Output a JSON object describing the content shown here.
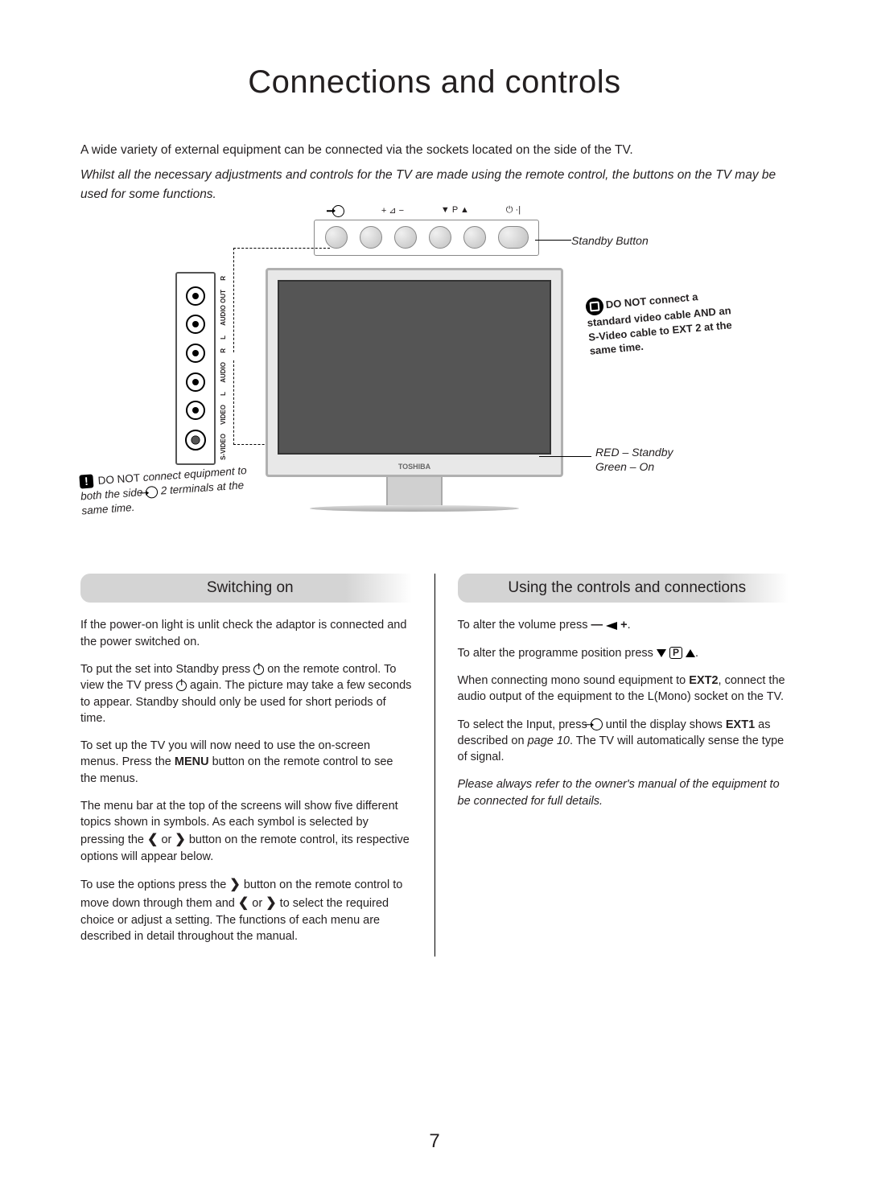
{
  "title": "Connections and controls",
  "intro": {
    "p1": "A wide variety of external equipment can be connected via the sockets located on the side of the TV.",
    "p2": "Whilst all the necessary adjustments and controls for the TV are made using the remote control, the buttons on the TV may be used for some functions."
  },
  "diagram": {
    "btn_label_input": "",
    "btn_label_vol": "+ ⊿ −",
    "btn_label_prog": "▼ P ▲",
    "btn_label_power": "⏻ ·|",
    "standby_button": "Standby Button",
    "tv_brand": "TOSHIBA",
    "led_red": "RED – Standby",
    "led_green": "Green – On",
    "side_audio_out": "AUDIO OUT",
    "side_r1": "R",
    "side_l1": "L",
    "side_ext2": "⊕ (2)",
    "side_audio": "AUDIO",
    "side_r2": "R",
    "side_l2": "L",
    "side_video": "VIDEO",
    "side_svideo": "S-VIDEO"
  },
  "callouts": {
    "left_prefix": "DO NOT",
    "left_text": " connect equipment to both the side ",
    "left_suffix": " 2 terminals at the same time.",
    "right_bold1": "DO NOT connect a standard video cable AND an S-Video cable to EXT 2 at the same time."
  },
  "sections": {
    "left_heading": "Switching on",
    "right_heading": "Using the controls and connections"
  },
  "left_col": {
    "p1": "If the power-on light is unlit check the adaptor is connected and the power switched on.",
    "p2a": "To put the set into Standby press ",
    "p2b": " on the remote control. To view the TV press ",
    "p2c": " again. The picture may take a few seconds to appear. Standby should only be used for short periods of time.",
    "p3a": "To set up the TV you will now need to use the on-screen menus. Press the ",
    "p3b": "MENU",
    "p3c": " button on the remote control to see the menus.",
    "p4a": "The menu bar at the top of the screens will show five different topics shown in symbols. As each symbol is selected by pressing the ",
    "p4b": " or ",
    "p4c": " button on the remote control, its respective options will appear below.",
    "p5a": "To use the options press the ",
    "p5b": " button on the remote control to move down through them and ",
    "p5c": " or ",
    "p5d": " to select the required choice or adjust a setting. The functions of each menu are described in detail throughout the manual."
  },
  "right_col": {
    "p1a": "To alter the volume press ",
    "p1b": ".",
    "p2a": "To alter the programme position press ",
    "p2b": ".",
    "p3a": "When connecting mono sound equipment to ",
    "p3b": "EXT2",
    "p3c": ", connect the audio output of the equipment to the L(Mono) socket on the TV.",
    "p4a": "To select the Input, press ",
    "p4b": " until the display shows ",
    "p4c": "EXT1",
    "p4d": " as described on ",
    "p4e": "page 10",
    "p4f": ". The TV will automatically sense the type of signal.",
    "p5": "Please always refer to the owner's manual of the equipment to be connected for full details."
  },
  "page_number": "7"
}
